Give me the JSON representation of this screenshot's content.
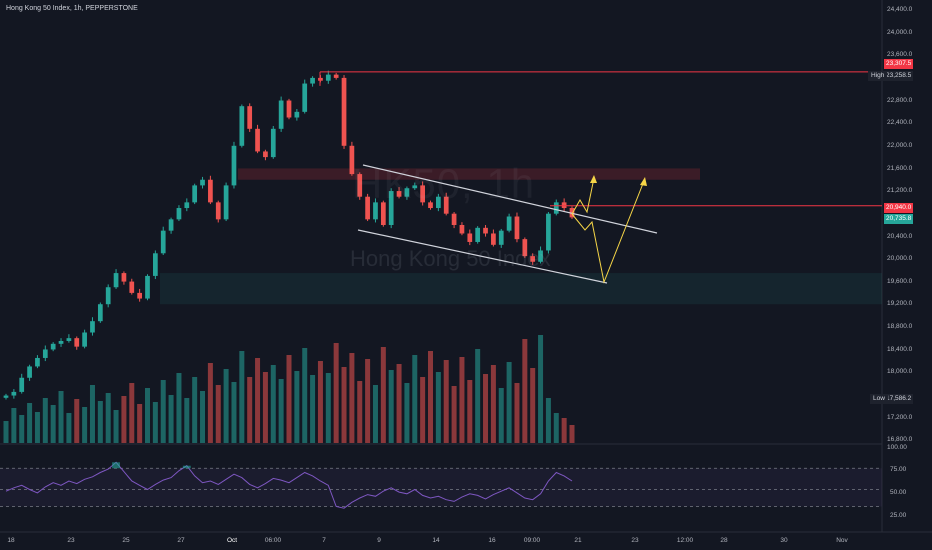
{
  "header": {
    "title": "Hong Kong 50 Index, 1h, PEPPERSTONE"
  },
  "watermark": {
    "ticker": "HK50, 1h",
    "name": "Hong Kong 50 Index"
  },
  "price_axis": {
    "labels": [
      "24,400.0",
      "24,000.0",
      "23,600.0",
      "22,800.0",
      "22,400.0",
      "22,000.0",
      "21,600.0",
      "21,200.0",
      "20,400.0",
      "20,000.0",
      "19,600.0",
      "19,200.0",
      "18,800.0",
      "18,400.0",
      "18,000.0",
      "17,200.0",
      "16,800.0"
    ]
  },
  "price_tags": {
    "resistance_top": "23,307.5",
    "high_value": "23,258.5",
    "resistance_mid": "20,940.0",
    "last_price": "20,735.8",
    "low_value": "17,586.2"
  },
  "side_labels": {
    "high": "High",
    "low": "Low"
  },
  "rsi_axis": {
    "labels": [
      "100.00",
      "75.00",
      "50.00",
      "25.00"
    ]
  },
  "time_axis": {
    "labels": [
      "18",
      "23",
      "25",
      "27",
      "Oct",
      "06:00",
      "7",
      "9",
      "14",
      "16",
      "09:00",
      "21",
      "23",
      "12:00",
      "28",
      "30",
      "Nov"
    ]
  },
  "colors": {
    "background": "#131722",
    "bull": "#26a69a",
    "bear": "#ef5350",
    "rsi_line": "#7e57c2",
    "projection": "#f5d547",
    "channel": "#d1d4dc",
    "resistance": "#f23645"
  },
  "chart_data": {
    "type": "candlestick",
    "symbol": "Hong Kong 50 Index",
    "timeframe": "1h",
    "source": "PEPPERSTONE",
    "y_range": [
      16800,
      24400
    ],
    "levels": {
      "resistance_top": 23307.5,
      "resistance_mid": 20940.0,
      "high": 23258.5,
      "low": 17586.2,
      "last": 20735.8
    },
    "supply_zone": [
      21400,
      21600
    ],
    "demand_zone": [
      19200,
      19750
    ],
    "close_path": [
      17586,
      17650,
      17900,
      18100,
      18250,
      18400,
      18500,
      18550,
      18600,
      18450,
      18700,
      18900,
      19200,
      19500,
      19750,
      19600,
      19400,
      19300,
      19700,
      20100,
      20500,
      20700,
      20900,
      21000,
      21300,
      21400,
      21000,
      20700,
      21300,
      22000,
      22700,
      22300,
      21900,
      21800,
      22300,
      22800,
      22500,
      22600,
      23100,
      23200,
      23150,
      23258,
      23200,
      22000,
      21500,
      21100,
      20700,
      21000,
      20600,
      21200,
      21100,
      21250,
      21300,
      21000,
      20900,
      21100,
      20800,
      20600,
      20450,
      20300,
      20550,
      20450,
      20250,
      20500,
      20750,
      20350,
      20050,
      19950,
      20150,
      20800,
      21000,
      20900,
      20735
    ],
    "volume_path": [
      22,
      35,
      28,
      40,
      31,
      45,
      38,
      52,
      30,
      44,
      36,
      58,
      42,
      50,
      33,
      47,
      60,
      39,
      55,
      41,
      63,
      48,
      70,
      45,
      66,
      52,
      80,
      58,
      74,
      61,
      92,
      66,
      85,
      71,
      78,
      64,
      88,
      72,
      95,
      68,
      82,
      70,
      100,
      76,
      90,
      62,
      84,
      58,
      96,
      73,
      79,
      60,
      88,
      66,
      92,
      71,
      83,
      57,
      86,
      63,
      94,
      69,
      78,
      55,
      81,
      60,
      104,
      75,
      108,
      45,
      30,
      25,
      18
    ],
    "rsi": [
      48,
      52,
      55,
      50,
      46,
      53,
      58,
      55,
      60,
      57,
      62,
      65,
      70,
      74,
      82,
      71,
      60,
      55,
      50,
      56,
      61,
      64,
      72,
      78,
      66,
      58,
      60,
      56,
      62,
      68,
      64,
      56,
      52,
      57,
      63,
      61,
      58,
      64,
      70,
      66,
      60,
      55,
      30,
      28,
      35,
      40,
      44,
      42,
      48,
      52,
      47,
      45,
      50,
      43,
      40,
      42,
      38,
      36,
      41,
      45,
      43,
      39,
      44,
      48,
      52,
      46,
      40,
      38,
      45,
      60,
      70,
      66,
      60
    ],
    "channel": {
      "upper": [
        [
          363,
          165
        ],
        [
          657,
          233
        ]
      ],
      "lower": [
        [
          358,
          230
        ],
        [
          607,
          283
        ]
      ]
    },
    "rsi_bands": [
      75,
      50,
      30
    ]
  }
}
